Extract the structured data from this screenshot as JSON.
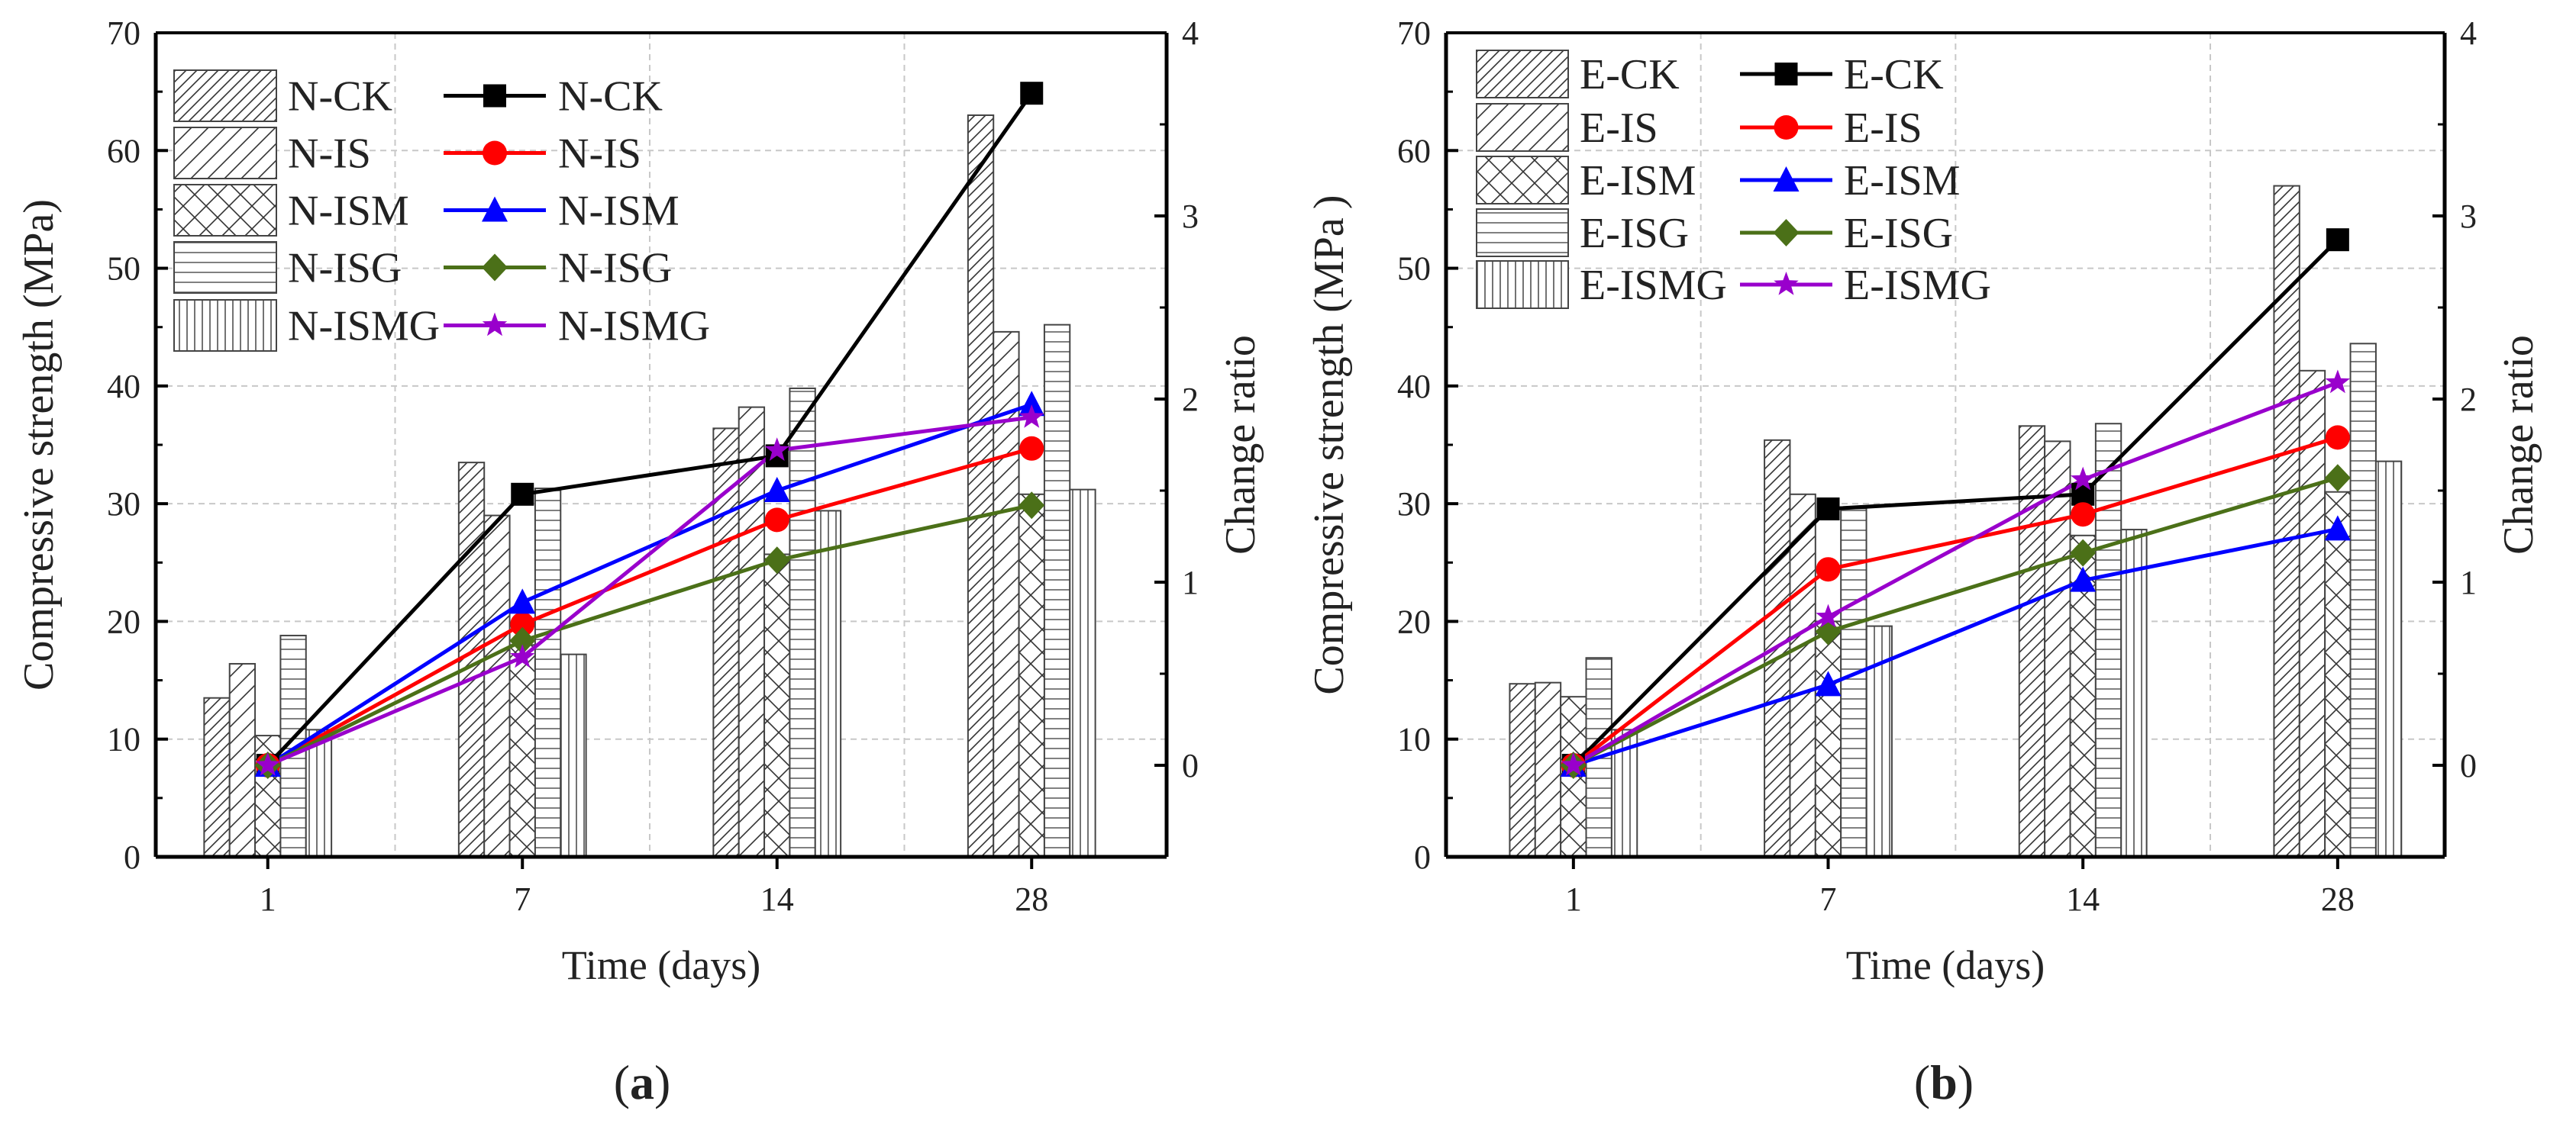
{
  "chart_data": [
    {
      "type": "bar+line",
      "panel_label": "(a)",
      "panel_letter": "a",
      "xlabel": "Time (days)",
      "ylabel": "Compressive strength (MPa)",
      "y2label": "Change ratio",
      "categories": [
        "1",
        "7",
        "14",
        "28"
      ],
      "ylim": [
        0,
        70
      ],
      "yticks": [
        "0",
        "10",
        "20",
        "30",
        "40",
        "50",
        "60",
        "70"
      ],
      "y2lim": [
        -0.5,
        4
      ],
      "y2ticks": [
        "0",
        "1",
        "2",
        "3",
        "4"
      ],
      "grid": true,
      "legend_position": "top-left",
      "bar_series": [
        {
          "name": "N-CK",
          "pattern": "diag-dense",
          "values": [
            13.5,
            33.5,
            36.4,
            63.0
          ]
        },
        {
          "name": "N-IS",
          "pattern": "diag-wide",
          "values": [
            16.4,
            29.0,
            38.2,
            44.6
          ]
        },
        {
          "name": "N-ISM",
          "pattern": "cross",
          "values": [
            10.3,
            18.0,
            25.7,
            30.8
          ]
        },
        {
          "name": "N-ISG",
          "pattern": "horizontal",
          "values": [
            18.8,
            31.3,
            39.8,
            45.2
          ]
        },
        {
          "name": "N-ISMG",
          "pattern": "vertical",
          "values": [
            10.8,
            17.2,
            29.4,
            31.2
          ]
        }
      ],
      "line_series": [
        {
          "name": "N-CK",
          "color": "#000000",
          "marker": "square",
          "values": [
            0,
            1.48,
            1.69,
            3.67
          ]
        },
        {
          "name": "N-IS",
          "color": "#ff0000",
          "marker": "circle",
          "values": [
            0,
            0.77,
            1.34,
            1.73
          ]
        },
        {
          "name": "N-ISM",
          "color": "#0000ff",
          "marker": "triangle",
          "values": [
            0,
            0.89,
            1.5,
            1.97
          ]
        },
        {
          "name": "N-ISG",
          "color": "#4b7018",
          "marker": "diamond",
          "values": [
            0,
            0.68,
            1.12,
            1.42
          ]
        },
        {
          "name": "N-ISMG",
          "color": "#9900cc",
          "marker": "star",
          "values": [
            0,
            0.59,
            1.72,
            1.9
          ]
        }
      ]
    },
    {
      "type": "bar+line",
      "panel_label": "(b)",
      "panel_letter": "b",
      "xlabel": "Time (days)",
      "ylabel": "Compressive strength (MPa )",
      "y2label": "Change ratio",
      "categories": [
        "1",
        "7",
        "14",
        "28"
      ],
      "ylim": [
        0,
        70
      ],
      "yticks": [
        "0",
        "10",
        "20",
        "30",
        "40",
        "50",
        "60",
        "70"
      ],
      "y2lim": [
        -0.5,
        4
      ],
      "y2ticks": [
        "0",
        "1",
        "2",
        "3",
        "4"
      ],
      "grid": true,
      "legend_position": "top-left",
      "bar_series": [
        {
          "name": "E-CK",
          "pattern": "diag-dense",
          "values": [
            14.7,
            35.4,
            36.6,
            57.0
          ]
        },
        {
          "name": "E-IS",
          "pattern": "diag-wide",
          "values": [
            14.8,
            30.8,
            35.3,
            41.3
          ]
        },
        {
          "name": "E-ISM",
          "pattern": "cross",
          "values": [
            13.6,
            20.0,
            27.3,
            31.0
          ]
        },
        {
          "name": "E-ISG",
          "pattern": "horizontal",
          "values": [
            16.9,
            29.6,
            36.8,
            43.6
          ]
        },
        {
          "name": "E-ISMG",
          "pattern": "vertical",
          "values": [
            10.8,
            19.6,
            27.8,
            33.6
          ]
        }
      ],
      "line_series": [
        {
          "name": "E-CK",
          "color": "#000000",
          "marker": "square",
          "values": [
            0,
            1.4,
            1.48,
            2.87
          ]
        },
        {
          "name": "E-IS",
          "color": "#ff0000",
          "marker": "circle",
          "values": [
            0,
            1.07,
            1.37,
            1.79
          ]
        },
        {
          "name": "E-ISM",
          "color": "#0000ff",
          "marker": "triangle",
          "values": [
            0,
            0.44,
            1.01,
            1.29
          ]
        },
        {
          "name": "E-ISG",
          "color": "#4b7018",
          "marker": "diamond",
          "values": [
            0,
            0.73,
            1.16,
            1.57
          ]
        },
        {
          "name": "E-ISMG",
          "color": "#9900cc",
          "marker": "star",
          "values": [
            0,
            0.81,
            1.56,
            2.09
          ]
        }
      ]
    }
  ]
}
